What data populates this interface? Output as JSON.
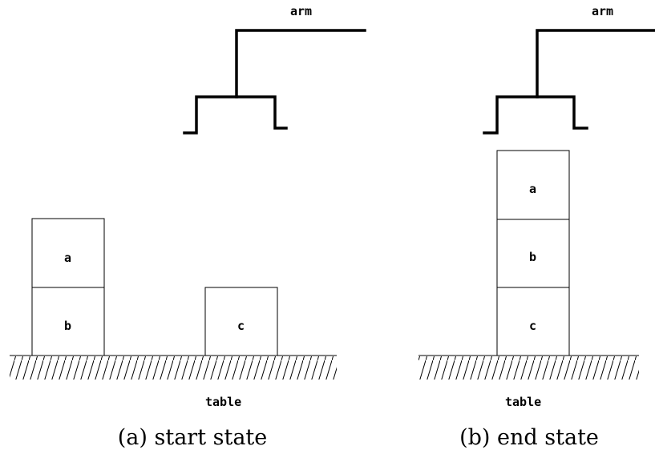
{
  "panels": [
    {
      "arm_label": "arm",
      "table_label": "table",
      "caption": "(a) start state",
      "blocks": [
        "a",
        "b",
        "c"
      ]
    },
    {
      "arm_label": "arm",
      "table_label": "table",
      "caption": "(b) end state",
      "blocks": [
        "a",
        "b",
        "c"
      ]
    }
  ]
}
